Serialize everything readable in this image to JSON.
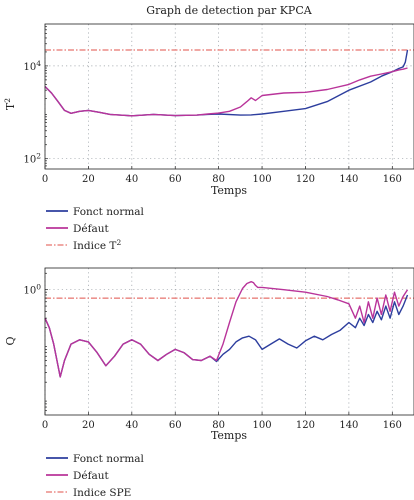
{
  "colors": {
    "normal": "#2d3e9e",
    "fault": "#b9349a",
    "threshold": "#e0504a"
  },
  "chart_data": [
    {
      "type": "line",
      "title": "Graph de detection par KPCA",
      "xlabel": "Temps",
      "ylabel": "T²",
      "ylabel_main": "T",
      "ylabel_sup": "2",
      "yscale": "log",
      "xlim": [
        0,
        170
      ],
      "ylim": [
        60,
        80000
      ],
      "grid": true,
      "xticks": [
        0,
        20,
        40,
        60,
        80,
        100,
        120,
        140,
        160
      ],
      "yticks": [
        {
          "value": 100,
          "base": "10",
          "exp": "2"
        },
        {
          "value": 10000,
          "base": "10",
          "exp": "4"
        }
      ],
      "threshold": {
        "name": "Indice T²",
        "value": 22000
      },
      "series": [
        {
          "name": "Fonct normal",
          "x": [
            0,
            3,
            6,
            9,
            12,
            16,
            20,
            25,
            30,
            40,
            50,
            60,
            70,
            75,
            80,
            90,
            95,
            100,
            110,
            120,
            130,
            140,
            150,
            155,
            160,
            163,
            165,
            166,
            167
          ],
          "y": [
            3600,
            2600,
            1700,
            1100,
            950,
            1050,
            1100,
            1000,
            900,
            840,
            900,
            850,
            870,
            900,
            920,
            870,
            880,
            920,
            1050,
            1200,
            1700,
            3000,
            4500,
            6000,
            7500,
            8800,
            9500,
            12000,
            22000
          ]
        },
        {
          "name": "Défaut",
          "x": [
            0,
            3,
            6,
            9,
            12,
            16,
            20,
            25,
            30,
            40,
            50,
            60,
            70,
            75,
            80,
            85,
            90,
            93,
            95,
            97,
            100,
            110,
            120,
            130,
            140,
            145,
            150,
            155,
            160,
            163,
            165,
            167
          ],
          "y": [
            3600,
            2600,
            1700,
            1100,
            950,
            1050,
            1100,
            1000,
            900,
            840,
            900,
            850,
            870,
            920,
            960,
            1050,
            1300,
            1700,
            2050,
            1800,
            2300,
            2600,
            2700,
            3100,
            4000,
            5000,
            6000,
            6700,
            7500,
            8200,
            8500,
            9000
          ]
        }
      ],
      "legend": {
        "entries": [
          "Fonct normal",
          "Défaut",
          "Indice T²"
        ],
        "entry_main": [
          "Fonct normal",
          "Défaut",
          "Indice T"
        ],
        "entry_sup": [
          "",
          "",
          "2"
        ]
      }
    },
    {
      "type": "line",
      "title": "",
      "xlabel": "Temps",
      "ylabel": "Q",
      "yscale": "log",
      "xlim": [
        0,
        170
      ],
      "ylim": [
        0.005,
        2.5
      ],
      "grid": true,
      "xticks": [
        0,
        20,
        40,
        60,
        80,
        100,
        120,
        140,
        160
      ],
      "yticks": [
        {
          "value": 1,
          "base": "10",
          "exp": "0"
        }
      ],
      "threshold": {
        "name": "Indice SPE",
        "value": 0.7
      },
      "series": [
        {
          "name": "Fonct normal",
          "x": [
            0,
            2,
            4,
            6,
            7,
            9,
            12,
            16,
            20,
            24,
            28,
            32,
            36,
            40,
            44,
            48,
            52,
            56,
            60,
            64,
            68,
            72,
            76,
            79,
            82,
            85,
            88,
            91,
            94,
            97,
            100,
            104,
            108,
            112,
            116,
            120,
            124,
            128,
            132,
            136,
            140,
            143,
            145,
            147,
            149,
            151,
            153,
            155,
            157,
            159,
            161,
            163,
            165,
            167
          ],
          "y": [
            0.3,
            0.2,
            0.1,
            0.04,
            0.025,
            0.05,
            0.1,
            0.12,
            0.11,
            0.07,
            0.04,
            0.06,
            0.1,
            0.12,
            0.1,
            0.065,
            0.05,
            0.065,
            0.08,
            0.07,
            0.052,
            0.05,
            0.06,
            0.048,
            0.065,
            0.08,
            0.11,
            0.13,
            0.14,
            0.12,
            0.08,
            0.1,
            0.125,
            0.1,
            0.085,
            0.115,
            0.14,
            0.12,
            0.15,
            0.18,
            0.25,
            0.2,
            0.3,
            0.22,
            0.35,
            0.25,
            0.4,
            0.28,
            0.5,
            0.3,
            0.6,
            0.35,
            0.5,
            0.8
          ]
        },
        {
          "name": "Défaut",
          "x": [
            0,
            2,
            4,
            6,
            7,
            9,
            12,
            16,
            20,
            24,
            28,
            32,
            36,
            40,
            44,
            48,
            52,
            56,
            60,
            64,
            68,
            72,
            76,
            79,
            82,
            85,
            88,
            91,
            93,
            95,
            96,
            97,
            98,
            100,
            110,
            120,
            130,
            135,
            140,
            143,
            145,
            147,
            149,
            151,
            153,
            155,
            157,
            159,
            161,
            163,
            165,
            167
          ],
          "y": [
            0.3,
            0.2,
            0.1,
            0.04,
            0.025,
            0.05,
            0.1,
            0.12,
            0.11,
            0.07,
            0.04,
            0.06,
            0.1,
            0.12,
            0.1,
            0.065,
            0.05,
            0.065,
            0.08,
            0.07,
            0.052,
            0.05,
            0.06,
            0.05,
            0.1,
            0.25,
            0.6,
            1.05,
            1.3,
            1.4,
            1.35,
            1.2,
            1.1,
            1.1,
            1.0,
            0.9,
            0.75,
            0.65,
            0.55,
            0.3,
            0.5,
            0.25,
            0.6,
            0.3,
            0.7,
            0.35,
            0.8,
            0.4,
            0.9,
            0.5,
            0.75,
            1.0
          ]
        }
      ],
      "legend": {
        "entries": [
          "Fonct normal",
          "Défaut",
          "Indice SPE"
        ]
      }
    }
  ]
}
